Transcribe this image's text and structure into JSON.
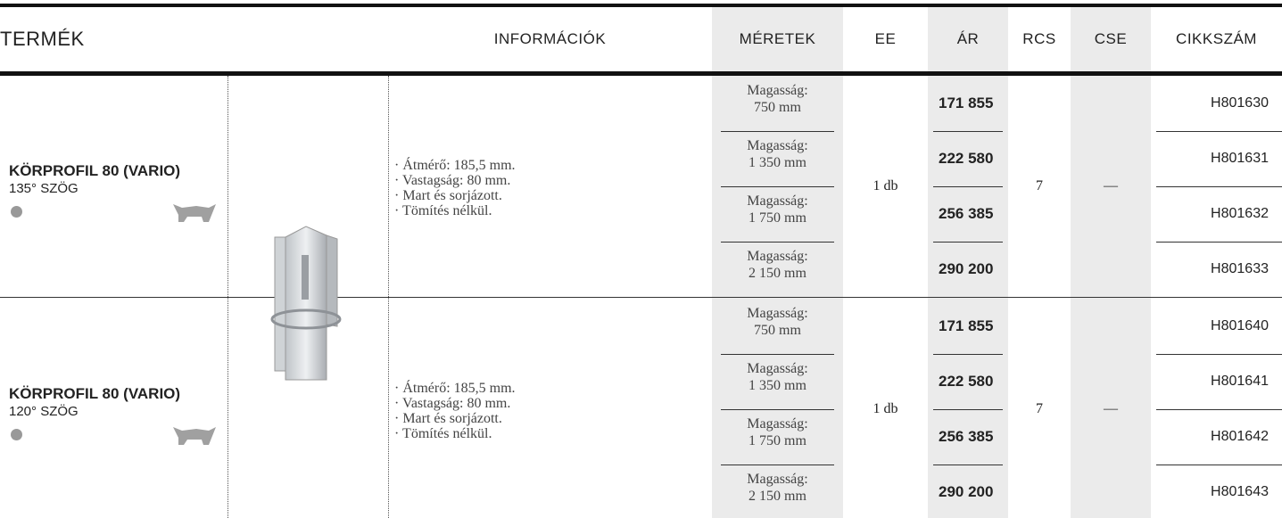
{
  "header": {
    "columns": [
      "TERMÉK",
      "INFORMÁCIÓK",
      "MÉRETEK",
      "EE",
      "ÁR",
      "RCS",
      "CSE",
      "CIKKSZÁM"
    ]
  },
  "products": [
    {
      "name": "KÖRPROFIL 80 (VARIO)",
      "subtitle": "135° SZÖG",
      "info": [
        "· Átmérő: 185,5 mm.",
        "· Vastagság: 80 mm.",
        "· Mart és sorjázott.",
        "· Tömítés nélkül."
      ],
      "ee": "1 db",
      "rcs": "7",
      "cse": "—",
      "variants": [
        {
          "label": "Magasság:",
          "size": "750 mm",
          "price": "171 855",
          "code": "H801630"
        },
        {
          "label": "Magasság:",
          "size": "1 350 mm",
          "price": "222 580",
          "code": "H801631"
        },
        {
          "label": "Magasság:",
          "size": "1 750 mm",
          "price": "256 385",
          "code": "H801632"
        },
        {
          "label": "Magasság:",
          "size": "2 150 mm",
          "price": "290 200",
          "code": "H801633"
        }
      ]
    },
    {
      "name": "KÖRPROFIL 80 (VARIO)",
      "subtitle": "120° SZÖG",
      "info": [
        "· Átmérő: 185,5 mm.",
        "· Vastagság: 80 mm.",
        "· Mart és sorjázott.",
        "· Tömítés nélkül."
      ],
      "ee": "1 db",
      "rcs": "7",
      "cse": "—",
      "variants": [
        {
          "label": "Magasság:",
          "size": "750 mm",
          "price": "171 855",
          "code": "H801640"
        },
        {
          "label": "Magasság:",
          "size": "1 350 mm",
          "price": "222 580",
          "code": "H801641"
        },
        {
          "label": "Magasság:",
          "size": "1 750 mm",
          "price": "256 385",
          "code": "H801642"
        },
        {
          "label": "Magasság:",
          "size": "2 150 mm",
          "price": "290 200",
          "code": "H801643"
        }
      ]
    }
  ]
}
